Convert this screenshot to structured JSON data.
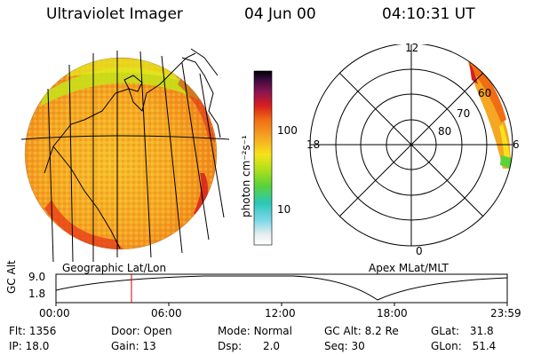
{
  "header": {
    "instrument": "Ultraviolet Imager",
    "date": "04 Jun 00",
    "time": "04:10:31 UT"
  },
  "colorbar": {
    "unit_label": "photon cm⁻²s⁻¹",
    "ticks": [
      "100",
      "10"
    ]
  },
  "polar_plot": {
    "mlt_labels": {
      "top": "12",
      "left": "18",
      "right": "6",
      "bottom": "0"
    },
    "lat_labels": [
      "60",
      "70",
      "80"
    ]
  },
  "panel_labels": {
    "left": "Geographic Lat/Lon",
    "right": "Apex MLat/MLT"
  },
  "altitude_plot": {
    "ylabel": "GC Alt",
    "yticks": [
      "9.0",
      "1.8"
    ],
    "xticks": [
      "00:00",
      "06:00",
      "12:00",
      "18:00",
      "23:59"
    ],
    "current_time_marker": "04:10"
  },
  "info": {
    "flt_label": "Flt:",
    "flt_value": "1356",
    "door_label": "Door:",
    "door_value": "Open",
    "mode_label": "Mode:",
    "mode_value": "Normal",
    "gcalt_label": "GC Alt:",
    "gcalt_value": "8.2 Re",
    "glat_label": "GLat:",
    "glat_value": "31.8",
    "ip_label": "IP:",
    "ip_value": "18.0",
    "gain_label": "Gain:",
    "gain_value": "13",
    "dsp_label": "Dsp:",
    "dsp_value": "2.0",
    "seq_label": "Seq:",
    "seq_value": "30",
    "glon_label": "GLon:",
    "glon_value": "51.4"
  },
  "colors": {
    "disk_base": "#f5a623",
    "colorbar_stops": [
      "#ffffff",
      "#7fd8e8",
      "#2bc7b8",
      "#5ad23a",
      "#c8e01a",
      "#f5e31a",
      "#f5a623",
      "#ef6d14",
      "#d71e1e",
      "#8a1550",
      "#3a0a40",
      "#000000"
    ],
    "marker": "#d40000"
  }
}
